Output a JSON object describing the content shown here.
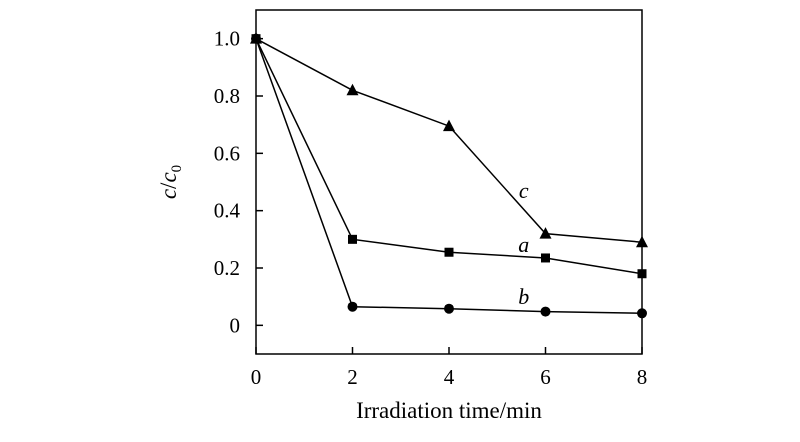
{
  "chart_data": {
    "type": "line",
    "xlabel": "Irradiation time/min",
    "ylabel": {
      "main": "c",
      "sep": "/",
      "sub_base": "c",
      "sub": "0"
    },
    "xlim": [
      0,
      8
    ],
    "ylim": [
      -0.1,
      1.1
    ],
    "x_ticks": [
      "0",
      "2",
      "4",
      "6",
      "8"
    ],
    "y_ticks": [
      "0",
      "0.2",
      "0.4",
      "0.6",
      "0.8",
      "1.0"
    ],
    "x_tick_values": [
      0,
      2,
      4,
      6,
      8
    ],
    "y_tick_values": [
      0,
      0.2,
      0.4,
      0.6,
      0.8,
      1.0
    ],
    "grid": false,
    "series": [
      {
        "name": "a",
        "marker": "square",
        "x": [
          0,
          2,
          4,
          6,
          8
        ],
        "y": [
          1.0,
          0.3,
          0.255,
          0.235,
          0.18
        ]
      },
      {
        "name": "b",
        "marker": "circle",
        "x": [
          0,
          2,
          4,
          6,
          8
        ],
        "y": [
          1.0,
          0.065,
          0.058,
          0.048,
          0.042
        ]
      },
      {
        "name": "c",
        "marker": "triangle",
        "x": [
          0,
          2,
          4,
          6,
          8
        ],
        "y": [
          1.0,
          0.82,
          0.695,
          0.32,
          0.29
        ]
      }
    ],
    "annotations": [
      {
        "text": "c",
        "series": "c",
        "x": 5.55,
        "y": 0.445
      },
      {
        "text": "a",
        "series": "a",
        "x": 5.55,
        "y": 0.255
      },
      {
        "text": "b",
        "series": "b",
        "x": 5.55,
        "y": 0.075
      }
    ]
  }
}
